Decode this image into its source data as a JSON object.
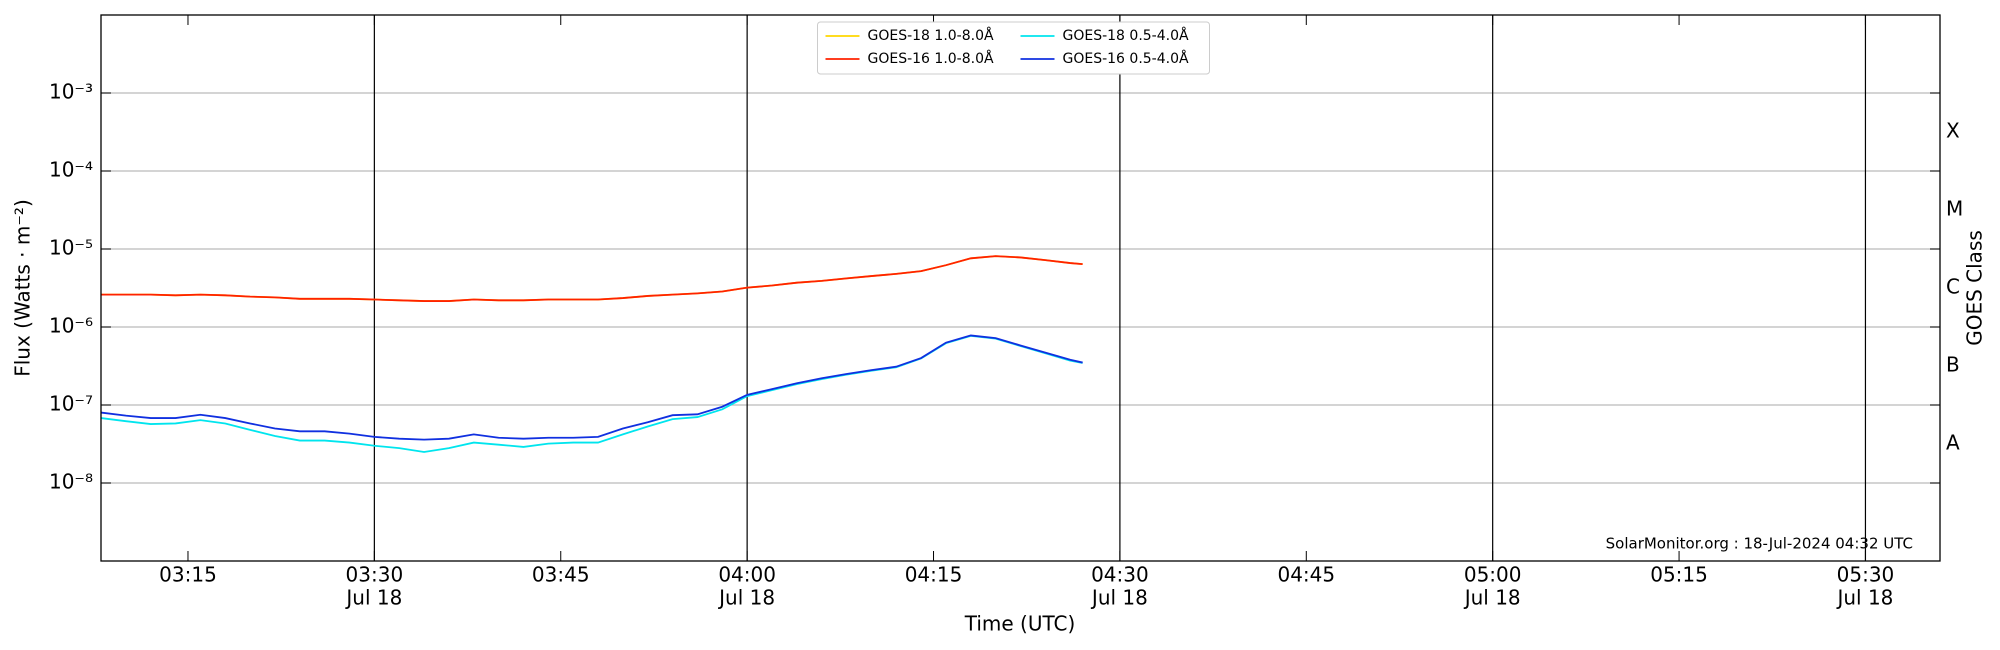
{
  "chart_data": {
    "type": "line",
    "xlabel": "Time (UTC)",
    "ylabel": "Flux (Watts · m⁻²)",
    "y2label": "GOES Class",
    "annotation": "SolarMonitor.org : 18-Jul-2024 04:32 UTC",
    "log_scale": true,
    "grid": true,
    "legend": "upper center",
    "xlim": [
      "03:08",
      "05:36"
    ],
    "xticks": [
      {
        "value": "03:15",
        "label": "03:15"
      },
      {
        "value": "03:30",
        "label": "03:30",
        "date": "Jul 18"
      },
      {
        "value": "03:45",
        "label": "03:45"
      },
      {
        "value": "04:00",
        "label": "04:00",
        "date": "Jul 18"
      },
      {
        "value": "04:15",
        "label": "04:15"
      },
      {
        "value": "04:30",
        "label": "04:30",
        "date": "Jul 18"
      },
      {
        "value": "04:45",
        "label": "04:45"
      },
      {
        "value": "05:00",
        "label": "05:00",
        "date": "Jul 18"
      },
      {
        "value": "05:15",
        "label": "05:15"
      },
      {
        "value": "05:30",
        "label": "05:30",
        "date": "Jul 18"
      }
    ],
    "ylim": [
      1e-09,
      0.01
    ],
    "yticks": [
      {
        "value": 1e-08,
        "label": "10⁻⁸"
      },
      {
        "value": 1e-07,
        "label": "10⁻⁷"
      },
      {
        "value": 1e-06,
        "label": "10⁻⁶"
      },
      {
        "value": 1e-05,
        "label": "10⁻⁵"
      },
      {
        "value": 0.0001,
        "label": "10⁻⁴"
      },
      {
        "value": 0.001,
        "label": "10⁻³"
      }
    ],
    "y2lim": [
      1e-09,
      0.01
    ],
    "y2ticks": [
      {
        "value": 1e-08,
        "label": "A"
      },
      {
        "value": 1e-07,
        "label": "B"
      },
      {
        "value": 1e-06,
        "label": "C"
      },
      {
        "value": 1e-05,
        "label": "M"
      },
      {
        "value": 0.0001,
        "label": "X"
      }
    ],
    "x": [
      "03:08",
      "03:10",
      "03:12",
      "03:14",
      "03:16",
      "03:18",
      "03:20",
      "03:22",
      "03:24",
      "03:26",
      "03:28",
      "03:30",
      "03:32",
      "03:34",
      "03:36",
      "03:38",
      "03:40",
      "03:42",
      "03:44",
      "03:46",
      "03:48",
      "03:50",
      "03:52",
      "03:54",
      "03:56",
      "03:58",
      "04:00",
      "04:02",
      "04:04",
      "04:06",
      "04:08",
      "04:10",
      "04:12",
      "04:14",
      "04:16",
      "04:18",
      "04:20",
      "04:22",
      "04:24",
      "04:26",
      "04:27"
    ],
    "series": [
      {
        "name": "GOES-18 1.0-8.0Å",
        "color": "#ffd700",
        "values": [
          2.6e-06,
          2.6e-06,
          2.6e-06,
          2.55e-06,
          2.6e-06,
          2.55e-06,
          2.45e-06,
          2.4e-06,
          2.3e-06,
          2.3e-06,
          2.3e-06,
          2.25e-06,
          2.2e-06,
          2.15e-06,
          2.15e-06,
          2.25e-06,
          2.2e-06,
          2.2e-06,
          2.25e-06,
          2.25e-06,
          2.25e-06,
          2.35e-06,
          2.5e-06,
          2.6e-06,
          2.7e-06,
          2.85e-06,
          3.2e-06,
          3.4e-06,
          3.7e-06,
          3.9e-06,
          4.2e-06,
          4.5e-06,
          4.8e-06,
          5.2e-06,
          6.2e-06,
          7.6e-06,
          8.1e-06,
          7.8e-06,
          7.2e-06,
          6.6e-06,
          6.4e-06
        ]
      },
      {
        "name": "GOES-16 1.0-8.0Å",
        "color": "#ff2200",
        "values": [
          2.6e-06,
          2.6e-06,
          2.6e-06,
          2.55e-06,
          2.6e-06,
          2.55e-06,
          2.45e-06,
          2.4e-06,
          2.3e-06,
          2.3e-06,
          2.3e-06,
          2.25e-06,
          2.2e-06,
          2.15e-06,
          2.15e-06,
          2.25e-06,
          2.2e-06,
          2.2e-06,
          2.25e-06,
          2.25e-06,
          2.25e-06,
          2.35e-06,
          2.5e-06,
          2.6e-06,
          2.7e-06,
          2.85e-06,
          3.2e-06,
          3.4e-06,
          3.7e-06,
          3.9e-06,
          4.2e-06,
          4.5e-06,
          4.8e-06,
          5.2e-06,
          6.2e-06,
          7.6e-06,
          8.1e-06,
          7.8e-06,
          7.2e-06,
          6.6e-06,
          6.4e-06
        ]
      },
      {
        "name": "GOES-18 0.5-4.0Å",
        "color": "#00e5ee",
        "values": [
          6.8e-08,
          6.2e-08,
          5.7e-08,
          5.8e-08,
          6.4e-08,
          5.8e-08,
          4.8e-08,
          4e-08,
          3.5e-08,
          3.5e-08,
          3.3e-08,
          3e-08,
          2.8e-08,
          2.5e-08,
          2.8e-08,
          3.3e-08,
          3.1e-08,
          2.9e-08,
          3.2e-08,
          3.3e-08,
          3.3e-08,
          4.2e-08,
          5.3e-08,
          6.6e-08,
          7e-08,
          8.8e-08,
          1.3e-07,
          1.55e-07,
          1.85e-07,
          2.15e-07,
          2.45e-07,
          2.75e-07,
          3.05e-07,
          3.95e-07,
          6.2e-07,
          7.7e-07,
          7.1e-07,
          5.7e-07,
          4.6e-07,
          3.7e-07,
          3.45e-07
        ]
      },
      {
        "name": "GOES-16 0.5-4.0Å",
        "color": "#1030e0",
        "values": [
          8e-08,
          7.3e-08,
          6.8e-08,
          6.8e-08,
          7.5e-08,
          6.8e-08,
          5.8e-08,
          5e-08,
          4.6e-08,
          4.6e-08,
          4.3e-08,
          3.9e-08,
          3.7e-08,
          3.6e-08,
          3.7e-08,
          4.2e-08,
          3.8e-08,
          3.7e-08,
          3.8e-08,
          3.8e-08,
          3.9e-08,
          5e-08,
          6e-08,
          7.4e-08,
          7.6e-08,
          9.5e-08,
          1.35e-07,
          1.6e-07,
          1.9e-07,
          2.2e-07,
          2.5e-07,
          2.8e-07,
          3.1e-07,
          4e-07,
          6.3e-07,
          7.8e-07,
          7.2e-07,
          5.8e-07,
          4.7e-07,
          3.8e-07,
          3.5e-07
        ]
      }
    ]
  }
}
